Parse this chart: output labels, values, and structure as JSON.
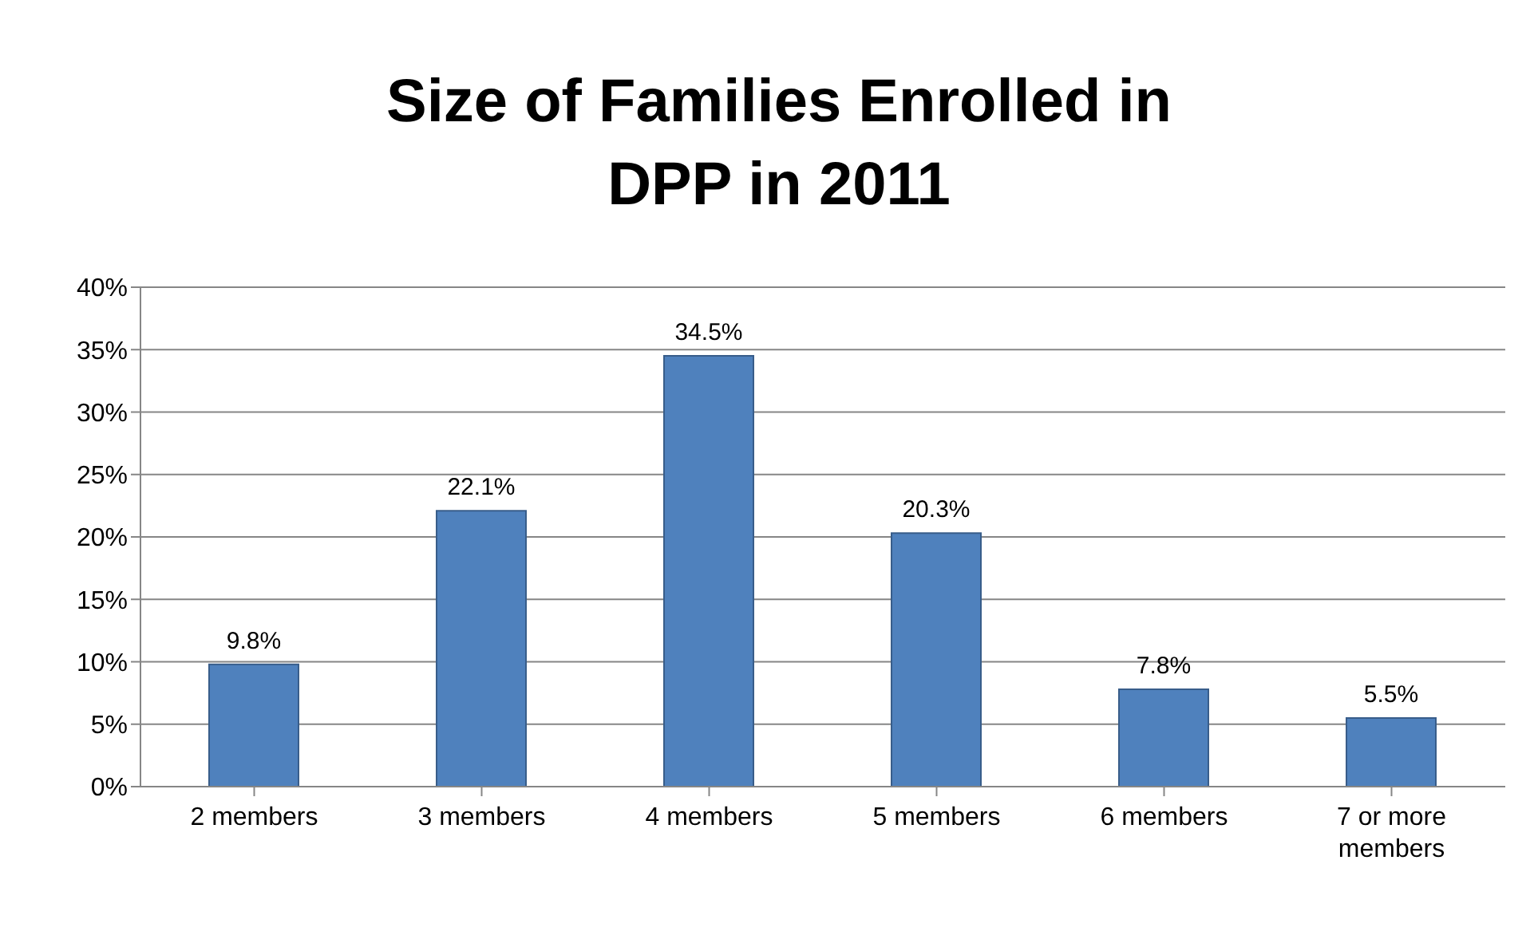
{
  "chart_data": {
    "type": "bar",
    "title": "Size of Families Enrolled in DPP in 2011",
    "categories": [
      "2 members",
      "3 members",
      "4 members",
      "5 members",
      "6 members",
      "7 or more members"
    ],
    "values": [
      9.8,
      22.1,
      34.5,
      20.3,
      7.8,
      5.5
    ],
    "value_labels": [
      "9.8%",
      "22.1%",
      "34.5%",
      "20.3%",
      "7.8%",
      "5.5%"
    ],
    "color": "#4f81bd",
    "ylim": [
      0,
      40
    ],
    "yticks": [
      {
        "value": 0,
        "label": "0%"
      },
      {
        "value": 5,
        "label": "5%"
      },
      {
        "value": 10,
        "label": "10%"
      },
      {
        "value": 15,
        "label": "15%"
      },
      {
        "value": 20,
        "label": "20%"
      },
      {
        "value": 25,
        "label": "25%"
      },
      {
        "value": 30,
        "label": "30%"
      },
      {
        "value": 35,
        "label": "35%"
      },
      {
        "value": 40,
        "label": "40%"
      }
    ],
    "grid": "y",
    "legend": false
  }
}
